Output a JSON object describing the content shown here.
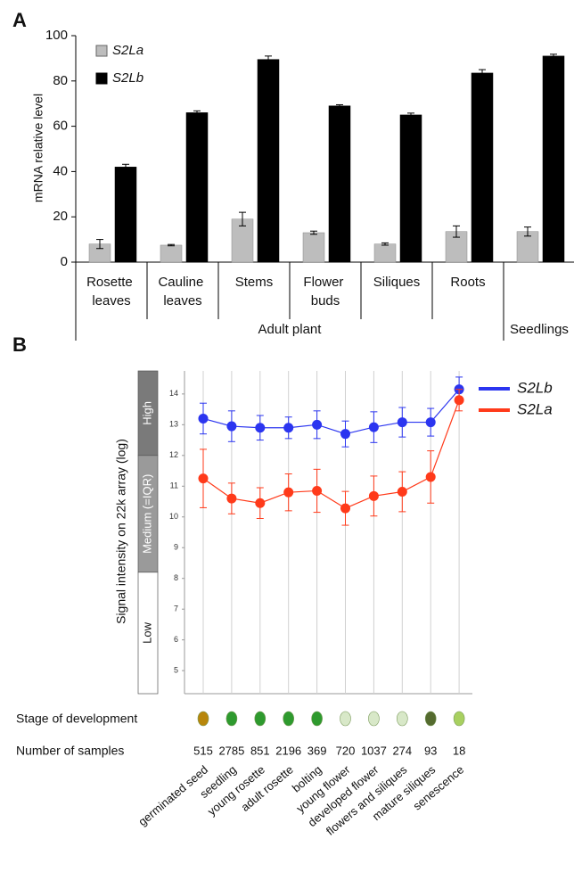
{
  "chart_data": [
    {
      "type": "bar",
      "panel": "A",
      "y_label": "mRNA relative level",
      "categories": [
        "Rosette leaves",
        "Cauline leaves",
        "Stems",
        "Flower buds",
        "Siliques",
        "Roots",
        null
      ],
      "groups": [
        {
          "label": "Adult plant",
          "span": 6
        },
        {
          "label": "Seedlings",
          "span": 1
        }
      ],
      "series": [
        {
          "name": "S2La",
          "color": "#bdbdbd",
          "values": [
            8,
            7.5,
            19,
            13,
            8,
            13.5,
            13.5
          ],
          "errors": [
            2,
            0.3,
            3,
            0.7,
            0.5,
            2.5,
            2
          ]
        },
        {
          "name": "S2Lb",
          "color": "#000000",
          "values": [
            42,
            66,
            89.5,
            69,
            65,
            83.5,
            91
          ],
          "errors": [
            1.2,
            0.8,
            1.5,
            0.5,
            0.8,
            1.5,
            0.8
          ]
        }
      ],
      "ylim": [
        0,
        100
      ],
      "yticks": [
        0,
        20,
        40,
        60,
        80,
        100
      ],
      "legend": "top-left"
    },
    {
      "type": "line",
      "panel": "B",
      "y_label": "Signal intensity on 22k array (log)",
      "row_labels": [
        "Stage of development",
        "Number of samples"
      ],
      "categories": [
        "germinated seed",
        "seedling",
        "young rosette",
        "adult rosette",
        "bolting",
        "young flower",
        "developed flower",
        "flowers and siliques",
        "mature siliques",
        "senescence"
      ],
      "samples": [
        515,
        2785,
        851,
        2196,
        369,
        720,
        1037,
        274,
        93,
        18
      ],
      "bands": [
        {
          "label": "High",
          "from": 12,
          "to": 14.75,
          "color": "#7a7a7a"
        },
        {
          "label": "Medium (=IQR)",
          "from": 8.2,
          "to": 12,
          "color": "#9a9a9a"
        },
        {
          "label": "Low",
          "from": 4.25,
          "to": 8.2,
          "color": "#ffffff"
        }
      ],
      "series": [
        {
          "name": "S2Lb",
          "color": "#2b35f0",
          "values": [
            13.2,
            12.95,
            12.9,
            12.9,
            13.0,
            12.7,
            12.92,
            13.08,
            13.08,
            14.15
          ],
          "errors": [
            0.5,
            0.5,
            0.4,
            0.35,
            0.45,
            0.42,
            0.5,
            0.48,
            0.45,
            0.4
          ]
        },
        {
          "name": "S2La",
          "color": "#ff3a1a",
          "values": [
            11.25,
            10.6,
            10.45,
            10.8,
            10.85,
            10.28,
            10.68,
            10.82,
            11.3,
            13.8
          ],
          "errors": [
            0.95,
            0.5,
            0.5,
            0.6,
            0.7,
            0.55,
            0.65,
            0.65,
            0.85,
            0.35
          ]
        }
      ],
      "ylim": [
        4.25,
        14.75
      ],
      "yticks": [
        5,
        6,
        7,
        8,
        9,
        10,
        11,
        12,
        13,
        14
      ],
      "grid": true,
      "legend": "top-right"
    }
  ]
}
